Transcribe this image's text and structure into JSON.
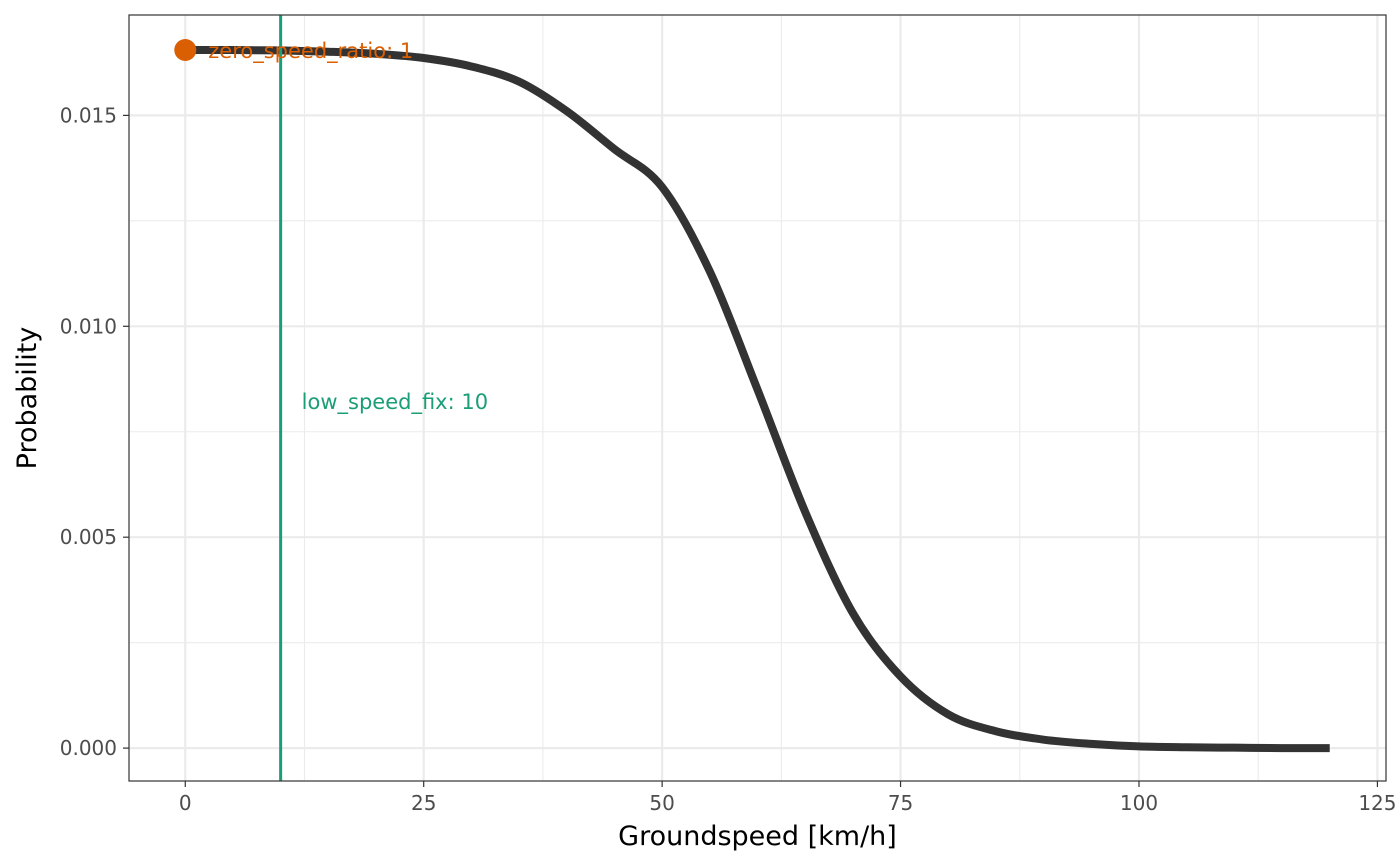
{
  "chart_data": {
    "type": "line",
    "title": "",
    "xlabel": "Groundspeed [km/h]",
    "ylabel": "Probability",
    "xlim": [
      -5.9,
      125.9
    ],
    "ylim": [
      -0.00078,
      0.01738
    ],
    "grid": true,
    "x_ticks": [
      0,
      25,
      50,
      75,
      100,
      125
    ],
    "x_tick_labels": [
      "0",
      "25",
      "50",
      "75",
      "100",
      "125"
    ],
    "y_ticks": [
      0,
      0.005,
      0.01,
      0.015
    ],
    "y_tick_labels": [
      "0.000",
      "0.005",
      "0.010",
      "0.015"
    ],
    "x_minor_ticks": [
      12.5,
      37.5,
      62.5,
      87.5,
      112.5
    ],
    "y_minor_ticks": [
      0.0025,
      0.0075,
      0.0125
    ],
    "series": [
      {
        "color": "#333333",
        "x": [
          0,
          5,
          10,
          15,
          20,
          25,
          30,
          35,
          40,
          45,
          50,
          55,
          60,
          65,
          70,
          75,
          80,
          85,
          90,
          95,
          100,
          105,
          110,
          115,
          120
        ],
        "y": [
          0.01655,
          0.01655,
          0.01654,
          0.01651,
          0.01646,
          0.01636,
          0.01616,
          0.0158,
          0.0151,
          0.0142,
          0.0133,
          0.0113,
          0.0085,
          0.0056,
          0.0032,
          0.0017,
          0.0008,
          0.0004,
          0.0002,
          0.0001,
          4e-05,
          2e-05,
          1e-05,
          0.0,
          0.0
        ]
      }
    ],
    "annotations": {
      "low_speed_fix": {
        "label": "low_speed_fix: 10",
        "x": 10,
        "label_y": 0.0082,
        "color": "#1b9e77"
      },
      "zero_speed_ratio": {
        "label": "zero_speed_ratio: 1",
        "x": 0,
        "y": 0.01655,
        "color": "#d95f02"
      }
    }
  }
}
